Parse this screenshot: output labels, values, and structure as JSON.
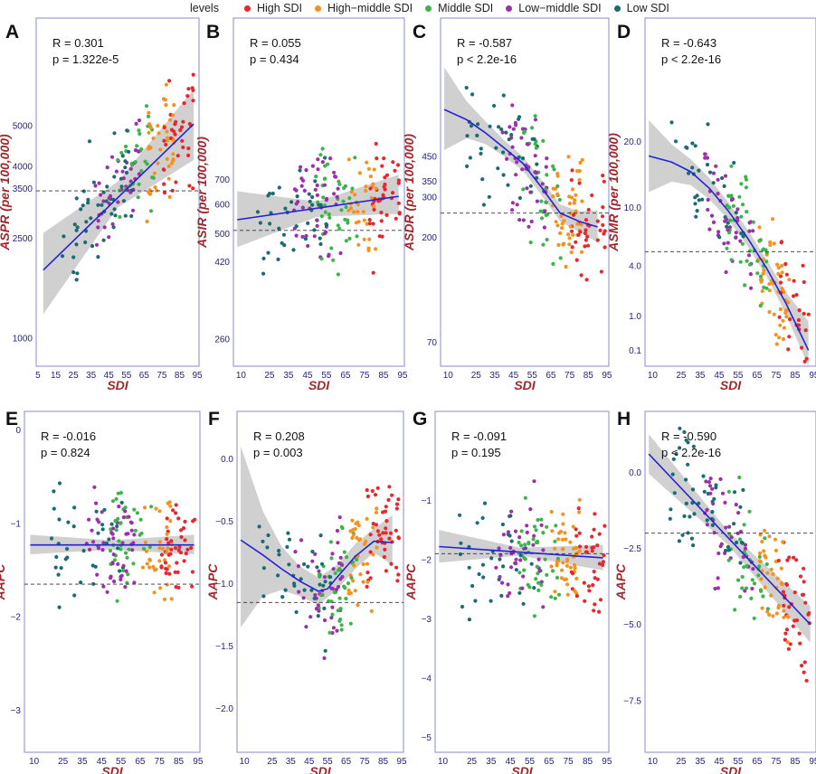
{
  "legend": {
    "title": "levels",
    "items": [
      {
        "label": "High SDI",
        "color": "#e8262d"
      },
      {
        "label": "High−middle SDI",
        "color": "#f5921e"
      },
      {
        "label": "Middle SDI",
        "color": "#3cb44b"
      },
      {
        "label": "Low−middle SDI",
        "color": "#9b30a8"
      },
      {
        "label": "Low SDI",
        "color": "#1a6b72"
      }
    ]
  },
  "colors": {
    "fit_line": "#2323d6",
    "ci_band": "#c8c8c8",
    "axis_label": "#a0282d",
    "frame": "#8888cc",
    "tick_label": "#24247a"
  },
  "chart_data": [
    {
      "panel": "A",
      "type": "scatter",
      "xlabel": "SDI",
      "ylabel": "ASPR (per 100,000)",
      "stats": [
        "R = 0.301",
        "p = 1.322e-5"
      ],
      "y_scale": "sqrt",
      "ylim": [
        700,
        8200
      ],
      "xlim": [
        4,
        96
      ],
      "x_ticks": [
        5,
        15,
        25,
        35,
        45,
        55,
        65,
        75,
        85,
        95
      ],
      "y_ticks": [
        1000,
        2500,
        3500,
        4000,
        5000
      ],
      "ref_line": 3450,
      "fit": "linear",
      "fit_line": [
        [
          8,
          1950
        ],
        [
          93,
          5050
        ]
      ],
      "ci_band": [
        [
          8,
          1300,
          2600
        ],
        [
          50,
          3100,
          3650
        ],
        [
          93,
          4150,
          6000
        ]
      ]
    },
    {
      "panel": "B",
      "type": "scatter",
      "xlabel": "SDI",
      "ylabel": "ASIR (per 100,000)",
      "stats": [
        "R = 0.055",
        "p = 0.434"
      ],
      "y_scale": "log",
      "ylim": [
        220,
        1900
      ],
      "xlim": [
        6,
        96
      ],
      "x_ticks": [
        10,
        25,
        35,
        45,
        55,
        65,
        75,
        85,
        95
      ],
      "y_ticks": [
        260,
        420,
        500,
        600,
        700
      ],
      "ref_line": 510,
      "fit": "linear",
      "fit_line": [
        [
          8,
          545
        ],
        [
          93,
          630
        ]
      ],
      "ci_band": [
        [
          8,
          460,
          650
        ],
        [
          50,
          555,
          610
        ],
        [
          93,
          565,
          720
        ]
      ]
    },
    {
      "panel": "C",
      "type": "scatter",
      "xlabel": "SDI",
      "ylabel": "ASDR (per 100,000)",
      "stats": [
        "R = -0.587",
        "p < 2.2e-16"
      ],
      "y_scale": "log",
      "ylim": [
        55,
        1800
      ],
      "xlim": [
        6,
        96
      ],
      "x_ticks": [
        10,
        25,
        35,
        45,
        55,
        65,
        75,
        85,
        95
      ],
      "y_ticks": [
        70,
        200,
        300,
        350,
        450
      ],
      "ref_line": 255,
      "fit": "loess",
      "fit_line": [
        [
          8,
          720
        ],
        [
          20,
          650
        ],
        [
          30,
          570
        ],
        [
          40,
          490
        ],
        [
          50,
          420
        ],
        [
          60,
          330
        ],
        [
          70,
          255
        ],
        [
          80,
          235
        ],
        [
          90,
          222
        ]
      ],
      "ci_band": [
        [
          8,
          480,
          1100
        ],
        [
          20,
          540,
          780
        ],
        [
          30,
          510,
          640
        ],
        [
          40,
          450,
          530
        ],
        [
          50,
          390,
          450
        ],
        [
          60,
          305,
          355
        ],
        [
          70,
          235,
          278
        ],
        [
          80,
          212,
          260
        ],
        [
          90,
          190,
          262
        ]
      ]
    },
    {
      "panel": "D",
      "type": "scatter",
      "xlabel": "SDI",
      "ylabel": "ASMR (per 100,000)",
      "stats": [
        "R = -0.643",
        "p < 2.2e-16"
      ],
      "y_scale": "sqrt",
      "ylim": [
        0,
        48
      ],
      "xlim": [
        6,
        96
      ],
      "x_ticks": [
        10,
        25,
        35,
        45,
        55,
        65,
        75,
        85,
        95
      ],
      "y_ticks": [
        0.1,
        1.0,
        4.0,
        10.0,
        20.0
      ],
      "ref_line": 5.2,
      "fit": "loess",
      "fit_line": [
        [
          8,
          17.5
        ],
        [
          20,
          16.5
        ],
        [
          30,
          15
        ],
        [
          40,
          12.5
        ],
        [
          50,
          9.5
        ],
        [
          60,
          6.5
        ],
        [
          70,
          3.8
        ],
        [
          80,
          1.6
        ],
        [
          92,
          0.1
        ]
      ],
      "ci_band": [
        [
          8,
          12,
          24
        ],
        [
          20,
          13.5,
          19.5
        ],
        [
          30,
          13,
          17
        ],
        [
          40,
          11,
          14
        ],
        [
          50,
          8.5,
          10.6
        ],
        [
          60,
          5.7,
          7.4
        ],
        [
          70,
          3.2,
          4.5
        ],
        [
          80,
          1.1,
          2.2
        ],
        [
          92,
          0,
          0.8
        ]
      ]
    },
    {
      "panel": "E",
      "type": "scatter",
      "xlabel": "SDI",
      "ylabel": "AAPC",
      "stats": [
        "R = -0.016",
        "p = 0.824"
      ],
      "y_scale": "linear",
      "ylim": [
        -3.45,
        0.2
      ],
      "xlim": [
        5,
        96
      ],
      "x_ticks": [
        10,
        25,
        35,
        45,
        55,
        65,
        75,
        85,
        95
      ],
      "y_ticks": [
        0,
        -1,
        -2,
        -3
      ],
      "ref_line": -1.65,
      "fit": "linear",
      "fit_line": [
        [
          8,
          -1.23
        ],
        [
          93,
          -1.23
        ]
      ],
      "ci_band": [
        [
          8,
          -1.33,
          -1.12
        ],
        [
          50,
          -1.28,
          -1.18
        ],
        [
          93,
          -1.33,
          -1.12
        ]
      ]
    },
    {
      "panel": "F",
      "type": "scatter",
      "xlabel": "SDI",
      "ylabel": "AAPC",
      "stats": [
        "R = 0.208",
        "p = 0.003"
      ],
      "y_scale": "linear",
      "ylim": [
        -2.35,
        0.38
      ],
      "xlim": [
        6,
        96
      ],
      "x_ticks": [
        10,
        25,
        35,
        45,
        55,
        65,
        75,
        85,
        95
      ],
      "y_ticks": [
        0.0,
        -0.5,
        -1.0,
        -1.5,
        -2.0
      ],
      "ref_line": -1.15,
      "fit": "loess",
      "fit_line": [
        [
          8,
          -0.65
        ],
        [
          20,
          -0.77
        ],
        [
          30,
          -0.88
        ],
        [
          40,
          -0.98
        ],
        [
          50,
          -1.06
        ],
        [
          55,
          -1.04
        ],
        [
          60,
          -0.95
        ],
        [
          70,
          -0.78
        ],
        [
          80,
          -0.66
        ],
        [
          90,
          -0.67
        ]
      ],
      "ci_band": [
        [
          8,
          -1.35,
          0.1
        ],
        [
          20,
          -1.1,
          -0.42
        ],
        [
          30,
          -1.05,
          -0.7
        ],
        [
          40,
          -1.1,
          -0.86
        ],
        [
          50,
          -1.17,
          -0.95
        ],
        [
          60,
          -1.05,
          -0.85
        ],
        [
          70,
          -0.88,
          -0.68
        ],
        [
          80,
          -0.75,
          -0.56
        ],
        [
          90,
          -0.85,
          -0.45
        ]
      ]
    },
    {
      "panel": "G",
      "type": "scatter",
      "xlabel": "SDI",
      "ylabel": "AAPC",
      "stats": [
        "R = -0.091",
        "p = 0.195"
      ],
      "y_scale": "linear",
      "ylim": [
        -5.25,
        0.5
      ],
      "xlim": [
        6,
        96
      ],
      "x_ticks": [
        10,
        25,
        35,
        45,
        55,
        65,
        75,
        85,
        95
      ],
      "y_ticks": [
        -1,
        -2,
        -3,
        -4,
        -5
      ],
      "ref_line": -1.9,
      "fit": "linear",
      "fit_line": [
        [
          8,
          -1.78
        ],
        [
          93,
          -1.97
        ]
      ],
      "ci_band": [
        [
          8,
          -2.05,
          -1.5
        ],
        [
          50,
          -1.93,
          -1.8
        ],
        [
          93,
          -2.18,
          -1.75
        ]
      ]
    },
    {
      "panel": "H",
      "type": "scatter",
      "xlabel": "SDI",
      "ylabel": "AAPC",
      "stats": [
        "R = -0.590",
        "p < 2.2e-16"
      ],
      "y_scale": "linear",
      "ylim": [
        -9.2,
        2.0
      ],
      "xlim": [
        6,
        96
      ],
      "x_ticks": [
        10,
        25,
        35,
        45,
        55,
        65,
        75,
        85,
        95
      ],
      "y_ticks": [
        0.0,
        -2.5,
        -5.0,
        -7.5
      ],
      "ref_line": -2.0,
      "fit": "linear",
      "fit_line": [
        [
          8,
          0.6
        ],
        [
          93,
          -5.0
        ]
      ],
      "ci_band": [
        [
          8,
          -0.05,
          1.25
        ],
        [
          50,
          -2.4,
          -1.95
        ],
        [
          93,
          -5.6,
          -4.4
        ]
      ]
    }
  ]
}
